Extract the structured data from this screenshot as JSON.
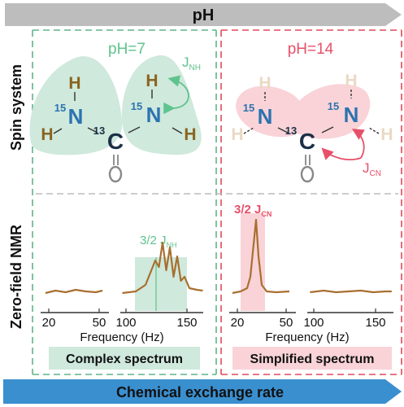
{
  "top_arrow": {
    "label": "pH"
  },
  "bottom_arrow": {
    "label": "Chemical exchange rate"
  },
  "row_labels": {
    "spin_system": "Spin system",
    "nmr": "Zero-field NMR"
  },
  "left_panel": {
    "ph_label": "pH=7",
    "coupling_label": {
      "main": "J",
      "sub": "NH"
    },
    "atoms": {
      "h": "H",
      "n": "N",
      "c": "C",
      "n_isotope": "15",
      "c_isotope": "13"
    },
    "peak_label": {
      "prefix": "3/2 J",
      "sub": "NH"
    },
    "axis_a_ticks": [
      "20",
      "50"
    ],
    "axis_b_ticks": [
      "100",
      "150"
    ],
    "xlabel": "Frequency (Hz)",
    "caption": "Complex spectrum"
  },
  "right_panel": {
    "ph_label": "pH=14",
    "coupling_label": {
      "main": "J",
      "sub": "CN"
    },
    "peak_label": {
      "prefix": "3/2 J",
      "sub": "CN"
    },
    "axis_a_ticks": [
      "20",
      "50"
    ],
    "axis_b_ticks": [
      "100",
      "150"
    ],
    "xlabel": "Frequency (Hz)",
    "caption": "Simplified spectrum"
  },
  "colors": {
    "arrow_gray": "#bdbdbd",
    "arrow_blue": "#3a8fcf",
    "green_fill": "#cfe9dc",
    "green_dash": "#5fb487",
    "green_text": "#5fc38d",
    "red_fill": "#f9d3d8",
    "red_dash": "#e04a5a",
    "red_text": "#e8506a",
    "hydrogen": "#8a6420",
    "hydrogen_faded": "#ead9c4",
    "nitrogen": "#2c73b0",
    "carbon": "#1a3048",
    "trace": "#a86f2f"
  },
  "chart_data": [
    {
      "type": "line",
      "panel": "pH=7",
      "x_ranges": [
        [
          15,
          55
        ],
        [
          95,
          165
        ]
      ],
      "series": [
        {
          "x": [
            18,
            24,
            30,
            36,
            42,
            48,
            52
          ],
          "y": [
            0.1,
            0.13,
            0.11,
            0.14,
            0.12,
            0.11,
            0.13
          ]
        },
        {
          "x": [
            97,
            108,
            116,
            120,
            124,
            127,
            130,
            133,
            136,
            139,
            142,
            145,
            148,
            152,
            158,
            163
          ],
          "y": [
            0.1,
            0.12,
            0.2,
            0.35,
            0.5,
            0.42,
            0.72,
            0.38,
            0.66,
            0.3,
            0.55,
            0.25,
            0.3,
            0.16,
            0.14,
            0.13
          ]
        }
      ],
      "annotation": "3/2 J_NH"
    },
    {
      "type": "line",
      "panel": "pH=14",
      "x_ranges": [
        [
          15,
          55
        ],
        [
          95,
          165
        ]
      ],
      "series": [
        {
          "x": [
            17,
            22,
            26,
            28,
            30,
            31.5,
            33,
            35,
            38,
            44,
            52
          ],
          "y": [
            0.1,
            0.12,
            0.16,
            0.3,
            0.7,
            1.0,
            0.55,
            0.2,
            0.12,
            0.11,
            0.12
          ]
        },
        {
          "x": [
            97,
            108,
            118,
            128,
            138,
            148,
            158,
            163
          ],
          "y": [
            0.11,
            0.13,
            0.11,
            0.12,
            0.13,
            0.11,
            0.12,
            0.12
          ]
        }
      ],
      "annotation": "3/2 J_CN"
    }
  ]
}
